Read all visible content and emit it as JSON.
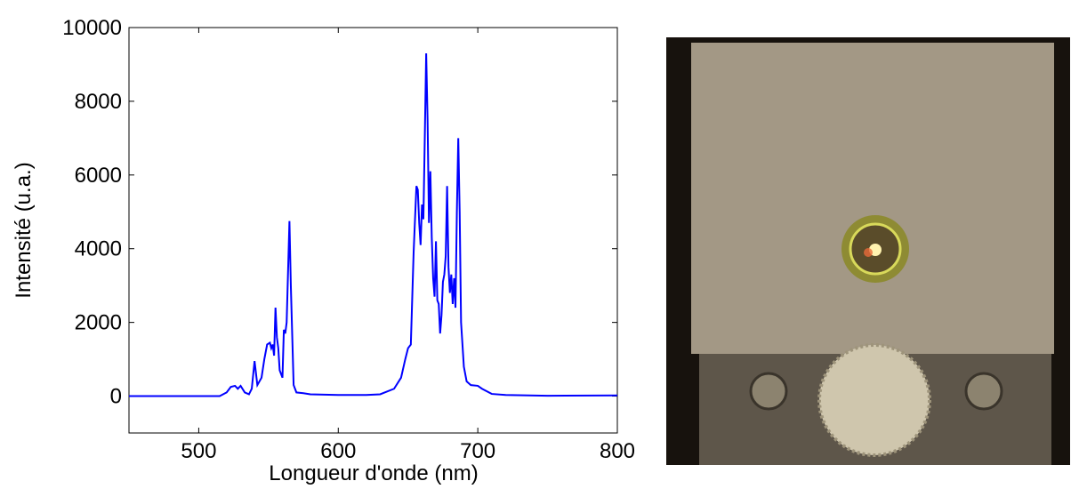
{
  "chart_data": {
    "type": "line",
    "xlabel": "Longueur d'onde (nm)",
    "ylabel": "Intensité (u.a.)",
    "xlim": [
      450,
      800
    ],
    "xticks": [
      500,
      600,
      700,
      800
    ],
    "ylim": [
      -1000,
      10000
    ],
    "yticks": [
      0,
      2000,
      4000,
      6000,
      8000,
      10000
    ],
    "grid": false,
    "series": [
      {
        "color": "#0000ff",
        "x": [
          450,
          470,
          500,
          515,
          520,
          523,
          526,
          528,
          530,
          533,
          536,
          538,
          540,
          542,
          545,
          547,
          549,
          551,
          552,
          553,
          554,
          555,
          556,
          557,
          558,
          560,
          561,
          562,
          563,
          565,
          566,
          568,
          570,
          575,
          580,
          600,
          620,
          630,
          640,
          645,
          648,
          650,
          652,
          654,
          656,
          657,
          658,
          659,
          660,
          661,
          662,
          663,
          664,
          665,
          666,
          667,
          668,
          669,
          670,
          671,
          672,
          673,
          674,
          675,
          676,
          677,
          678,
          679,
          680,
          681,
          682,
          683,
          684,
          685,
          686,
          687,
          688,
          690,
          692,
          695,
          700,
          703,
          710,
          720,
          750,
          800
        ],
        "values": [
          0,
          0,
          0,
          0,
          100,
          250,
          280,
          200,
          280,
          100,
          50,
          200,
          950,
          300,
          500,
          1000,
          1400,
          1450,
          1300,
          1400,
          1100,
          2400,
          1600,
          1300,
          700,
          500,
          1800,
          1700,
          2000,
          4750,
          3000,
          300,
          100,
          80,
          50,
          30,
          30,
          50,
          200,
          500,
          1000,
          1300,
          1400,
          3900,
          5700,
          5600,
          4700,
          4100,
          5200,
          4800,
          7000,
          9300,
          7500,
          4700,
          6100,
          4300,
          3200,
          2700,
          4200,
          2600,
          2500,
          1700,
          2200,
          3100,
          3300,
          3800,
          5700,
          3500,
          2800,
          3300,
          2500,
          3200,
          2400,
          5000,
          7000,
          5000,
          2000,
          800,
          400,
          300,
          280,
          200,
          60,
          30,
          10,
          20
        ]
      }
    ]
  }
}
